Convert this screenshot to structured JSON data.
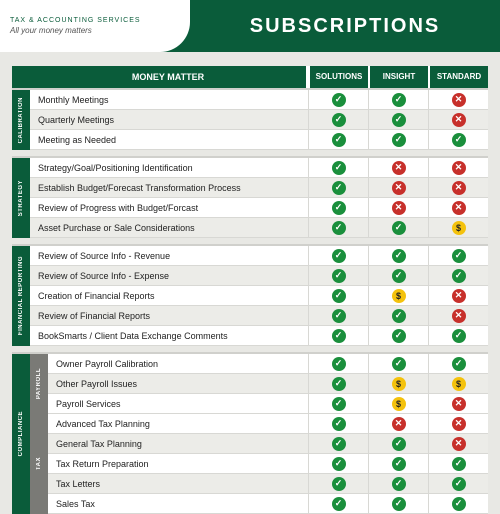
{
  "header": {
    "logo_sub": "TAX & ACCOUNTING SERVICES",
    "logo_tag": "All your money matters",
    "title": "SUBSCRIPTIONS"
  },
  "columns": {
    "main": "MONEY MATTER",
    "c1": "SOLUTIONS",
    "c2": "INSIGHT",
    "c3": "STANDARD"
  },
  "marks": {
    "yes": "✓",
    "no": "✕",
    "dollar": "$"
  },
  "sections": [
    {
      "label": "CALIBRATION",
      "rows": [
        {
          "t": "Monthly Meetings",
          "v": [
            "yes",
            "yes",
            "no"
          ]
        },
        {
          "t": "Quarterly Meetings",
          "v": [
            "yes",
            "yes",
            "no"
          ]
        },
        {
          "t": "Meeting as Needed",
          "v": [
            "yes",
            "yes",
            "yes"
          ]
        }
      ]
    },
    {
      "label": "STRATEGY",
      "rows": [
        {
          "t": "Strategy/Goal/Positioning Identification",
          "v": [
            "yes",
            "no",
            "no"
          ]
        },
        {
          "t": "Establish Budget/Forecast Transformation Process",
          "v": [
            "yes",
            "no",
            "no"
          ]
        },
        {
          "t": "Review of Progress with Budget/Forcast",
          "v": [
            "yes",
            "no",
            "no"
          ]
        },
        {
          "t": "Asset Purchase or Sale Considerations",
          "v": [
            "yes",
            "yes",
            "dollar"
          ]
        }
      ]
    },
    {
      "label": "FINANCIAL REPORTING",
      "rows": [
        {
          "t": "Review of Source Info - Revenue",
          "v": [
            "yes",
            "yes",
            "yes"
          ]
        },
        {
          "t": "Review of Source Info - Expense",
          "v": [
            "yes",
            "yes",
            "yes"
          ]
        },
        {
          "t": "Creation of Financial Reports",
          "v": [
            "yes",
            "dollar",
            "no"
          ]
        },
        {
          "t": "Review of Financial Reports",
          "v": [
            "yes",
            "yes",
            "no"
          ]
        },
        {
          "t": "BookSmarts / Client Data Exchange Comments",
          "v": [
            "yes",
            "yes",
            "yes"
          ]
        }
      ]
    }
  ],
  "compliance": {
    "label": "COMPLIANCE",
    "payroll": {
      "label": "PAYROLL",
      "rows": [
        {
          "t": "Owner Payroll Calibration",
          "v": [
            "yes",
            "yes",
            "yes"
          ]
        },
        {
          "t": "Other Payroll Issues",
          "v": [
            "yes",
            "dollar",
            "dollar"
          ]
        },
        {
          "t": "Payroll Services",
          "v": [
            "yes",
            "dollar",
            "no"
          ]
        }
      ]
    },
    "tax": {
      "label": "TAX",
      "rows": [
        {
          "t": "Advanced Tax Planning",
          "v": [
            "yes",
            "no",
            "no"
          ]
        },
        {
          "t": "General Tax Planning",
          "v": [
            "yes",
            "yes",
            "no"
          ]
        },
        {
          "t": "Tax Return Preparation",
          "v": [
            "yes",
            "yes",
            "yes"
          ]
        },
        {
          "t": "Tax Letters",
          "v": [
            "yes",
            "yes",
            "yes"
          ]
        },
        {
          "t": "Sales Tax",
          "v": [
            "yes",
            "yes",
            "yes"
          ]
        }
      ]
    }
  }
}
